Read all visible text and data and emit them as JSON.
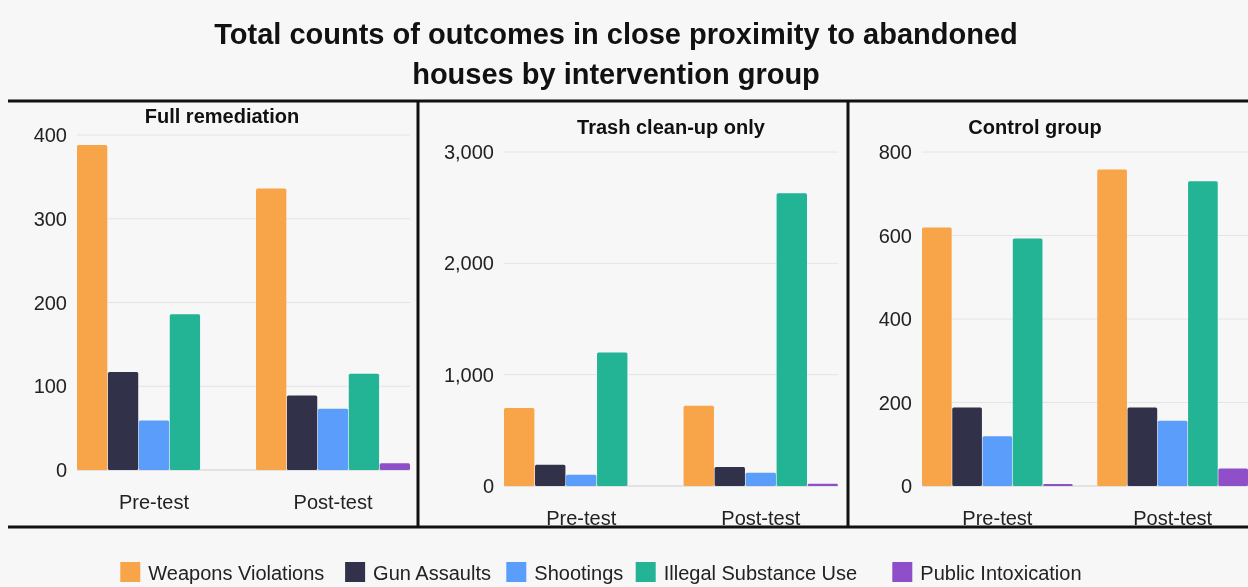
{
  "chart_data": [
    {
      "type": "bar",
      "title": "Total counts of outcomes in close proximity to abandoned houses by intervention group",
      "subtitle": "Full remediation",
      "categories": [
        "Pre-test",
        "Post-test"
      ],
      "ylim": [
        0,
        400
      ],
      "yticks": [
        0,
        100,
        200,
        300,
        400
      ],
      "grid": "y",
      "legend": "bottom",
      "series": [
        {
          "name": "Weapons Violations",
          "color": "#f8a449",
          "values": [
            388,
            336
          ]
        },
        {
          "name": "Gun Assaults",
          "color": "#313149",
          "values": [
            117,
            89
          ]
        },
        {
          "name": "Shootings",
          "color": "#5b9dfa",
          "values": [
            59,
            73
          ]
        },
        {
          "name": "Illegal Substance Use",
          "color": "#22b495",
          "values": [
            186,
            115
          ]
        },
        {
          "name": "Public Intoxication",
          "color": "#8e4fc8",
          "values": [
            0,
            8
          ]
        }
      ]
    },
    {
      "type": "bar",
      "title": "Trash clean-up only",
      "categories": [
        "Pre-test",
        "Post-test"
      ],
      "ylim": [
        0,
        3000
      ],
      "yticks": [
        0,
        {
          "value": 1000,
          "label": "1,000"
        },
        {
          "value": 2000,
          "label": "2,000"
        },
        {
          "value": 3000,
          "label": "3,000"
        }
      ],
      "grid": "y",
      "series": [
        {
          "color": "#f8a449",
          "values": [
            700,
            720
          ]
        },
        {
          "color": "#313149",
          "values": [
            190,
            170
          ]
        },
        {
          "color": "#5b9dfa",
          "values": [
            100,
            120
          ]
        },
        {
          "color": "#22b495",
          "values": [
            1200,
            2630
          ]
        },
        {
          "color": "#8e4fc8",
          "values": [
            0,
            20
          ]
        }
      ]
    },
    {
      "type": "bar",
      "title": "Control group",
      "categories": [
        "Pre-test",
        "Post-test"
      ],
      "ylim": [
        0,
        800
      ],
      "yticks": [
        0,
        200,
        400,
        600,
        800
      ],
      "grid": "y",
      "series": [
        {
          "color": "#f8a449",
          "values": [
            619,
            758
          ]
        },
        {
          "color": "#313149",
          "values": [
            188,
            188
          ]
        },
        {
          "color": "#5b9dfa",
          "values": [
            119,
            156
          ]
        },
        {
          "color": "#22b495",
          "values": [
            593,
            730
          ]
        },
        {
          "color": "#8e4fc8",
          "values": [
            5,
            42
          ]
        }
      ]
    }
  ]
}
